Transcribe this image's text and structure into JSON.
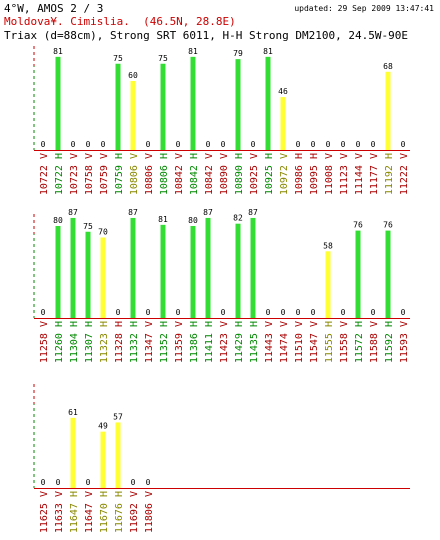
{
  "header": {
    "title": "4°W, AMOS 2 / 3",
    "updated": "updated: 29 Sep 2009 13:47:41",
    "location": "Moldova¥. Cimislia.  (46.5N, 28.8E)",
    "dish": "Triax (d=88cm), Strong SRT 6011, H-H Strong DM2100, 24.5W-90E"
  },
  "colors": {
    "green": "#33dd33",
    "yellow": "#ffff33",
    "label_green": "#008800",
    "label_olive": "#888800",
    "label_red": "#aa0000",
    "axis": "#cc0000"
  },
  "chart_data": [
    {
      "type": "bar",
      "values_scale_max": 100,
      "bars": [
        {
          "freq": "10722",
          "pol": "V",
          "value": 0,
          "color": "none"
        },
        {
          "freq": "10722",
          "pol": "H",
          "value": 81,
          "color": "green"
        },
        {
          "freq": "10723",
          "pol": "V",
          "value": 0,
          "color": "none"
        },
        {
          "freq": "10758",
          "pol": "V",
          "value": 0,
          "color": "none"
        },
        {
          "freq": "10759",
          "pol": "V",
          "value": 0,
          "color": "none"
        },
        {
          "freq": "10759",
          "pol": "H",
          "value": 75,
          "color": "green"
        },
        {
          "freq": "10806",
          "pol": "V",
          "value": 60,
          "color": "yellow"
        },
        {
          "freq": "10806",
          "pol": "V",
          "value": 0,
          "color": "none"
        },
        {
          "freq": "10806",
          "pol": "H",
          "value": 75,
          "color": "green"
        },
        {
          "freq": "10842",
          "pol": "V",
          "value": 0,
          "color": "none"
        },
        {
          "freq": "10842",
          "pol": "H",
          "value": 81,
          "color": "green"
        },
        {
          "freq": "10842",
          "pol": "V",
          "value": 0,
          "color": "none"
        },
        {
          "freq": "10890",
          "pol": "V",
          "value": 0,
          "color": "none"
        },
        {
          "freq": "10890",
          "pol": "H",
          "value": 79,
          "color": "green"
        },
        {
          "freq": "10925",
          "pol": "V",
          "value": 0,
          "color": "none"
        },
        {
          "freq": "10925",
          "pol": "H",
          "value": 81,
          "color": "green"
        },
        {
          "freq": "10972",
          "pol": "V",
          "value": 46,
          "color": "yellow"
        },
        {
          "freq": "10986",
          "pol": "H",
          "value": 0,
          "color": "none"
        },
        {
          "freq": "10995",
          "pol": "H",
          "value": 0,
          "color": "none"
        },
        {
          "freq": "11008",
          "pol": "V",
          "value": 0,
          "color": "none"
        },
        {
          "freq": "11123",
          "pol": "V",
          "value": 0,
          "color": "none"
        },
        {
          "freq": "11144",
          "pol": "V",
          "value": 0,
          "color": "none"
        },
        {
          "freq": "11177",
          "pol": "V",
          "value": 0,
          "color": "none"
        },
        {
          "freq": "11192",
          "pol": "H",
          "value": 68,
          "color": "yellow"
        },
        {
          "freq": "11222",
          "pol": "V",
          "value": 0,
          "color": "none"
        }
      ]
    },
    {
      "type": "bar",
      "values_scale_max": 100,
      "bars": [
        {
          "freq": "11258",
          "pol": "V",
          "value": 0,
          "color": "none"
        },
        {
          "freq": "11260",
          "pol": "H",
          "value": 80,
          "color": "green"
        },
        {
          "freq": "11304",
          "pol": "H",
          "value": 87,
          "color": "green"
        },
        {
          "freq": "11307",
          "pol": "H",
          "value": 75,
          "color": "green"
        },
        {
          "freq": "11323",
          "pol": "H",
          "value": 70,
          "color": "yellow"
        },
        {
          "freq": "11328",
          "pol": "H",
          "value": 0,
          "color": "none"
        },
        {
          "freq": "11332",
          "pol": "H",
          "value": 87,
          "color": "green"
        },
        {
          "freq": "11347",
          "pol": "V",
          "value": 0,
          "color": "none"
        },
        {
          "freq": "11352",
          "pol": "H",
          "value": 81,
          "color": "green"
        },
        {
          "freq": "11359",
          "pol": "V",
          "value": 0,
          "color": "none"
        },
        {
          "freq": "11386",
          "pol": "H",
          "value": 80,
          "color": "green"
        },
        {
          "freq": "11411",
          "pol": "H",
          "value": 87,
          "color": "green"
        },
        {
          "freq": "11423",
          "pol": "V",
          "value": 0,
          "color": "none"
        },
        {
          "freq": "11429",
          "pol": "H",
          "value": 82,
          "color": "green"
        },
        {
          "freq": "11435",
          "pol": "H",
          "value": 87,
          "color": "green"
        },
        {
          "freq": "11443",
          "pol": "V",
          "value": 0,
          "color": "none"
        },
        {
          "freq": "11474",
          "pol": "V",
          "value": 0,
          "color": "none"
        },
        {
          "freq": "11510",
          "pol": "V",
          "value": 0,
          "color": "none"
        },
        {
          "freq": "11547",
          "pol": "V",
          "value": 0,
          "color": "none"
        },
        {
          "freq": "11555",
          "pol": "H",
          "value": 58,
          "color": "yellow"
        },
        {
          "freq": "11558",
          "pol": "V",
          "value": 0,
          "color": "none"
        },
        {
          "freq": "11572",
          "pol": "H",
          "value": 76,
          "color": "green"
        },
        {
          "freq": "11588",
          "pol": "V",
          "value": 0,
          "color": "none"
        },
        {
          "freq": "11592",
          "pol": "H",
          "value": 76,
          "color": "green"
        },
        {
          "freq": "11593",
          "pol": "V",
          "value": 0,
          "color": "none"
        }
      ]
    },
    {
      "type": "bar",
      "values_scale_max": 100,
      "bars": [
        {
          "freq": "11625",
          "pol": "V",
          "value": 0,
          "color": "none"
        },
        {
          "freq": "11633",
          "pol": "V",
          "value": 0,
          "color": "none"
        },
        {
          "freq": "11647",
          "pol": "H",
          "value": 61,
          "color": "yellow"
        },
        {
          "freq": "11647",
          "pol": "V",
          "value": 0,
          "color": "none"
        },
        {
          "freq": "11670",
          "pol": "H",
          "value": 49,
          "color": "yellow"
        },
        {
          "freq": "11676",
          "pol": "H",
          "value": 57,
          "color": "yellow"
        },
        {
          "freq": "11692",
          "pol": "V",
          "value": 0,
          "color": "none"
        },
        {
          "freq": "11806",
          "pol": "V",
          "value": 0,
          "color": "none"
        }
      ]
    }
  ]
}
